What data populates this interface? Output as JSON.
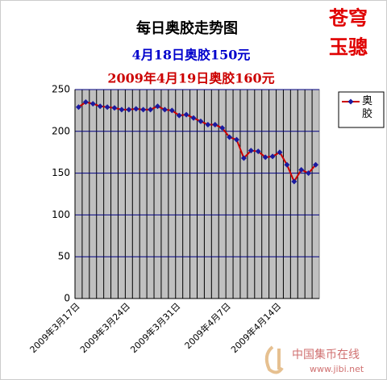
{
  "chart_data": {
    "type": "line",
    "title": "每日奥胶走势图",
    "subtitles": [
      "4月18日奥胶150元",
      "2009年4月19日奥胶160元"
    ],
    "subtitle_colors": [
      "#0000cc",
      "#cc0000"
    ],
    "categories": [
      "2009年3月17日",
      null,
      null,
      null,
      null,
      null,
      null,
      "2009年3月24日",
      null,
      null,
      null,
      null,
      null,
      null,
      "2009年3月31日",
      null,
      null,
      null,
      null,
      null,
      null,
      "2009年4月7日",
      null,
      null,
      null,
      null,
      null,
      null,
      "2009年4月14日",
      null,
      null,
      null,
      null,
      null
    ],
    "series": [
      {
        "name": "奥胶",
        "color": "#cc0000",
        "marker_color": "#1a1aa0",
        "values": [
          229,
          235,
          233,
          230,
          229,
          228,
          226,
          226,
          227,
          226,
          226,
          230,
          226,
          225,
          219,
          220,
          216,
          212,
          208,
          208,
          204,
          193,
          190,
          168,
          177,
          176,
          169,
          170,
          175,
          160,
          140,
          154,
          150,
          160
        ]
      }
    ],
    "ylim": [
      0,
      250
    ],
    "yticks": [
      0,
      50,
      100,
      150,
      200,
      250
    ],
    "grid": true,
    "legend": "right"
  },
  "stamp": [
    "苍穹",
    "玉骢"
  ],
  "watermark": {
    "name": "中国集币在线",
    "url": "www.jibi.net"
  }
}
